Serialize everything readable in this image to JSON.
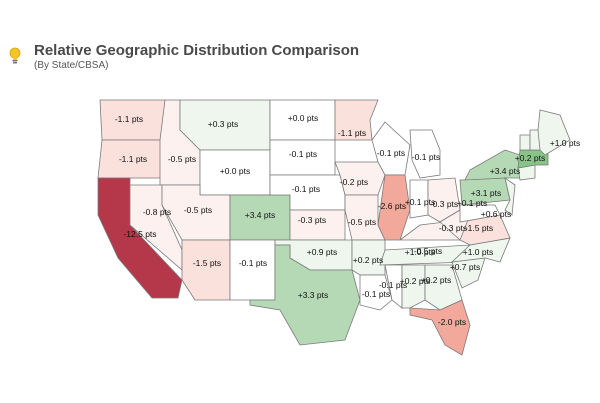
{
  "header": {
    "title": "Relative Geographic Distribution Comparison",
    "subtitle": "(By State/CBSA)",
    "icon": "lightbulb-icon"
  },
  "colors": {
    "strong_negative": "#b5374a",
    "negative_mid": "#f2a89a",
    "negative_light": "#fbe1dc",
    "faint_negative": "#fdf1ef",
    "neutral": "#ffffff",
    "faint_positive": "#eef6ee",
    "positive": "#b5d9b5",
    "positive_strong": "#88c488"
  },
  "chart_data": {
    "type": "map",
    "regions": [
      {
        "id": "WA",
        "value": "-1.1 pts",
        "level": "negative_light"
      },
      {
        "id": "OR",
        "value": "-1.1 pts",
        "level": "negative_light"
      },
      {
        "id": "CA",
        "value": "-12.5 pts",
        "level": "strong_negative"
      },
      {
        "id": "ID",
        "value": "-0.5 pts",
        "level": "faint_negative"
      },
      {
        "id": "NV",
        "value": "-0.8 pts",
        "level": "faint_negative"
      },
      {
        "id": "MT",
        "value": "+0.3 pts",
        "level": "faint_positive"
      },
      {
        "id": "WY",
        "value": "+0.0 pts",
        "level": "neutral"
      },
      {
        "id": "UT",
        "value": "-0.5 pts",
        "level": "faint_negative"
      },
      {
        "id": "AZ",
        "value": "-1.5 pts",
        "level": "negative_light"
      },
      {
        "id": "CO",
        "value": "+3.4 pts",
        "level": "positive"
      },
      {
        "id": "NM",
        "value": "-0.1 pts",
        "level": "neutral"
      },
      {
        "id": "ND",
        "value": "+0.0 pts",
        "level": "neutral"
      },
      {
        "id": "SD",
        "value": "-0.1 pts",
        "level": "neutral"
      },
      {
        "id": "NE",
        "value": "-0.1 pts",
        "level": "neutral"
      },
      {
        "id": "KS",
        "value": "-0.3 pts",
        "level": "faint_negative"
      },
      {
        "id": "OK",
        "value": "+0.9 pts",
        "level": "faint_positive"
      },
      {
        "id": "TX",
        "value": "+3.3 pts",
        "level": "positive"
      },
      {
        "id": "MN",
        "value": "-1.1 pts",
        "level": "negative_light"
      },
      {
        "id": "IA",
        "value": "-0.2 pts",
        "level": "faint_negative"
      },
      {
        "id": "MO",
        "value": "-0.5 pts",
        "level": "faint_negative"
      },
      {
        "id": "AR",
        "value": "+0.2 pts",
        "level": "faint_positive"
      },
      {
        "id": "LA",
        "value": "-0.1 pts",
        "level": "neutral"
      },
      {
        "id": "WI",
        "value": "-0.1 pts",
        "level": "neutral"
      },
      {
        "id": "IL",
        "value": "-2.6 pts",
        "level": "negative_mid"
      },
      {
        "id": "MI",
        "value": "-0.1 pts",
        "level": "neutral"
      },
      {
        "id": "IN",
        "value": "+0.1 pts",
        "level": "neutral"
      },
      {
        "id": "OH",
        "value": "-0.3 pts",
        "level": "faint_negative"
      },
      {
        "id": "KY",
        "value": "-0.5 pts",
        "level": "faint_negative"
      },
      {
        "id": "TN",
        "value": "+1.0 pts",
        "level": "faint_positive"
      },
      {
        "id": "MS",
        "value": "-0.1 pts",
        "level": "neutral"
      },
      {
        "id": "AL",
        "value": "+0.2 pts",
        "level": "faint_positive"
      },
      {
        "id": "GA",
        "value": "+0.2 pts",
        "level": "faint_positive"
      },
      {
        "id": "FL",
        "value": "-2.0 pts",
        "level": "negative_mid"
      },
      {
        "id": "SC",
        "value": "+0.7 pts",
        "level": "faint_positive"
      },
      {
        "id": "NC",
        "value": "+1.0 pts",
        "level": "faint_positive"
      },
      {
        "id": "VA",
        "value": "-1.5 pts",
        "level": "negative_light"
      },
      {
        "id": "WV",
        "value": "-0.3 pts",
        "level": "faint_negative"
      },
      {
        "id": "PA",
        "value": "+3.1 pts",
        "level": "positive"
      },
      {
        "id": "NY",
        "value": "+3.4 pts",
        "level": "positive"
      },
      {
        "id": "MD",
        "value": "+0.1 pts",
        "level": "neutral"
      },
      {
        "id": "NJ",
        "value": "+0.6 pts",
        "level": "faint_positive"
      },
      {
        "id": "CT",
        "value": "+0.2 pts",
        "level": "faint_positive"
      },
      {
        "id": "MA",
        "value": "",
        "level": "positive_strong"
      },
      {
        "id": "VT",
        "value": "",
        "level": "faint_positive"
      },
      {
        "id": "NH",
        "value": "",
        "level": "faint_positive"
      },
      {
        "id": "ME",
        "value": "+1.0 pts",
        "level": "faint_positive"
      }
    ]
  }
}
